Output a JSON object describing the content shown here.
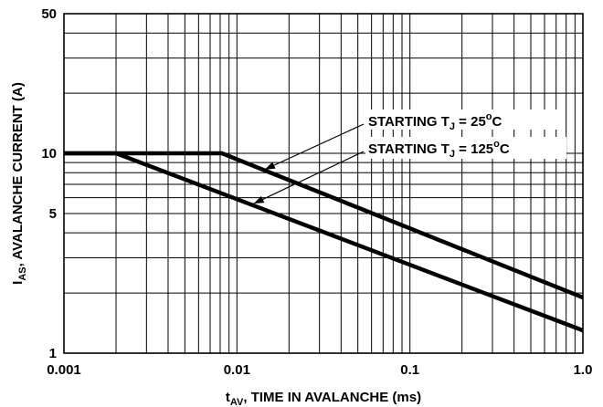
{
  "chart_data": {
    "type": "line",
    "title": "",
    "xlabel": {
      "main": "t",
      "sub": "AV",
      "rest": ", TIME IN AVALANCHE (ms)"
    },
    "ylabel": {
      "main": "I",
      "sub": "AS",
      "rest": ", AVALANCHE CURRENT (A)"
    },
    "x_scale": "log",
    "y_scale": "log",
    "xlim": [
      0.001,
      1.0
    ],
    "ylim": [
      1,
      50
    ],
    "grid": true,
    "x_ticks": [
      {
        "value": 0.001,
        "label": "0.001"
      },
      {
        "value": 0.01,
        "label": "0.01"
      },
      {
        "value": 0.1,
        "label": "0.1"
      },
      {
        "value": 1.0,
        "label": "1.0"
      }
    ],
    "y_ticks": [
      {
        "value": 1,
        "label": "1"
      },
      {
        "value": 5,
        "label": "5"
      },
      {
        "value": 10,
        "label": "10"
      },
      {
        "value": 50,
        "label": "50"
      }
    ],
    "series": [
      {
        "id": "tj25",
        "x": [
          0.001,
          0.0082,
          1.0
        ],
        "y": [
          10,
          10,
          1.9
        ]
      },
      {
        "id": "tj125",
        "x": [
          0.001,
          0.002,
          1.0
        ],
        "y": [
          10,
          10,
          1.3
        ]
      }
    ],
    "annotations": [
      {
        "id": "tj25",
        "pre": "STARTING T",
        "sub": "J",
        "mid": " = 25",
        "sup": "o",
        "post": "C",
        "target_x": 0.0145,
        "target_y": 8.3
      },
      {
        "id": "tj125",
        "pre": "STARTING T",
        "sub": "J",
        "mid": " = 125",
        "sup": "o",
        "post": "C",
        "target_x": 0.0125,
        "target_y": 5.6
      }
    ]
  }
}
